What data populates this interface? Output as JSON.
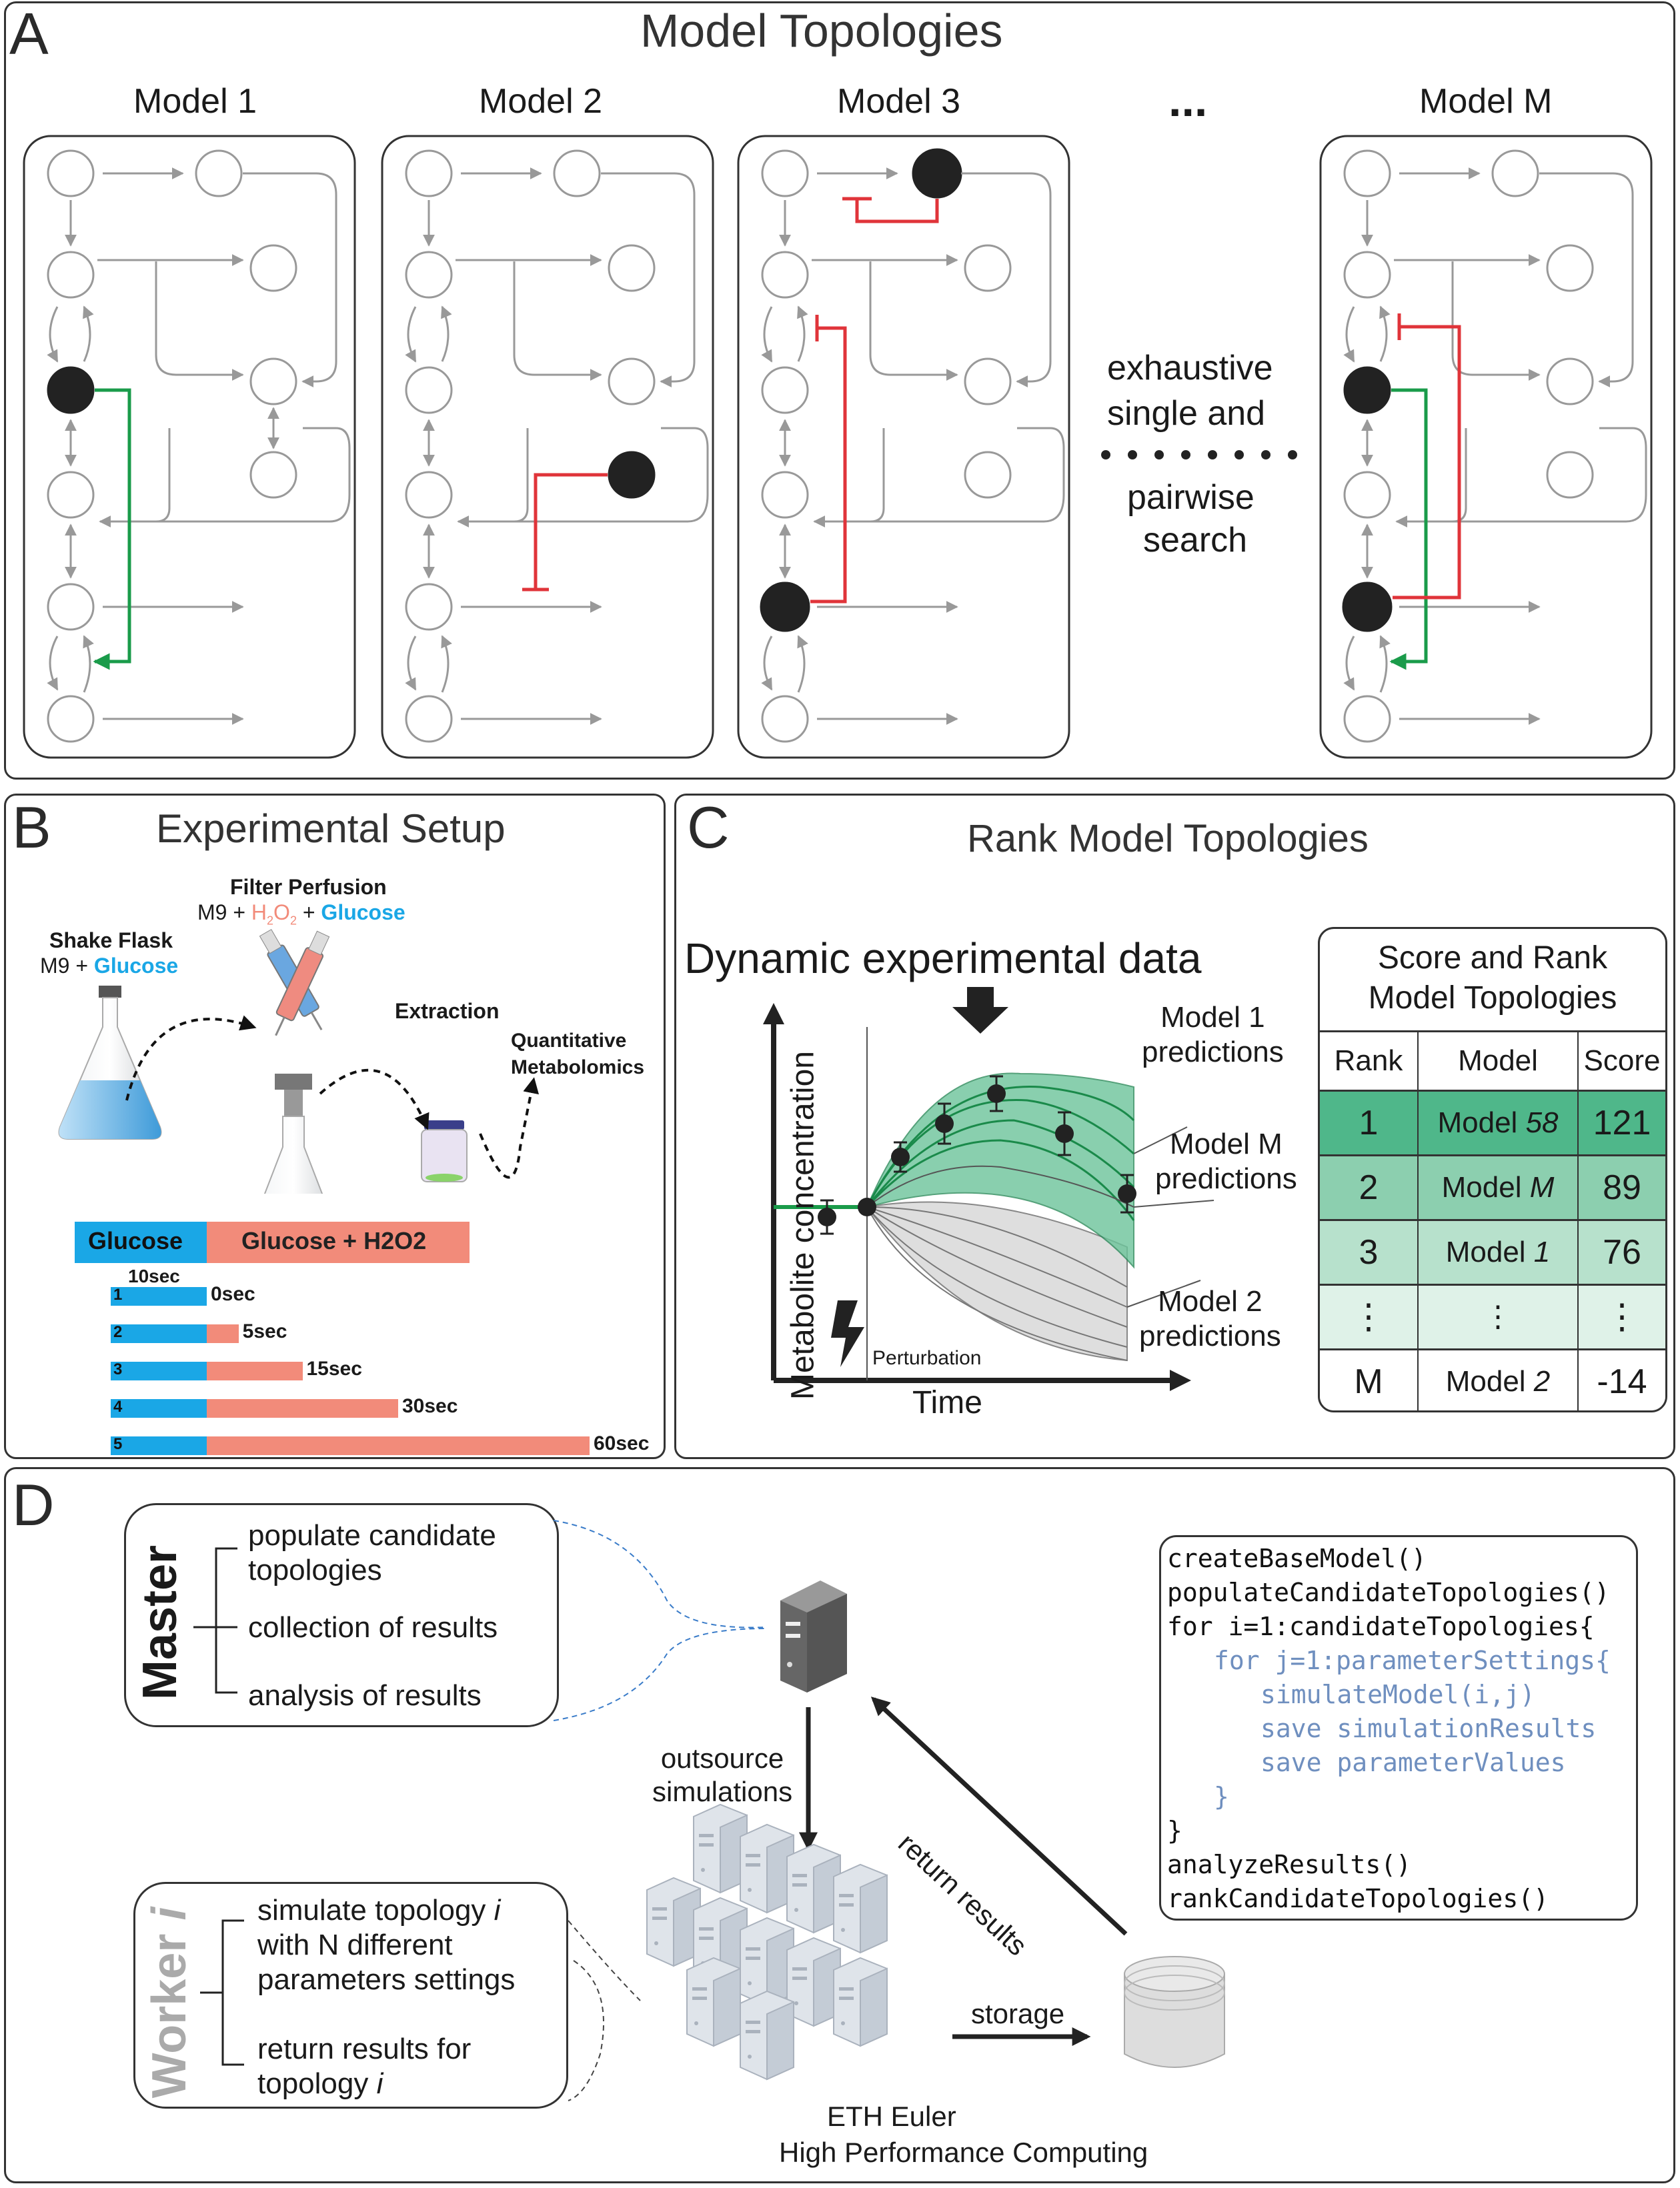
{
  "panel_a": {
    "label": "A",
    "title": "Model Topologies",
    "models": [
      "Model 1",
      "Model 2",
      "Model 3",
      "Model M"
    ],
    "ellipsis": "...",
    "search_lines": [
      "exhaustive",
      "single and",
      "pairwise",
      "search"
    ]
  },
  "panel_b": {
    "label": "B",
    "title": "Experimental Setup",
    "shake_flask": "Shake Flask",
    "shake_medium_prefix": "M9 + ",
    "glucose": "Glucose",
    "filter_perfusion": "Filter Perfusion",
    "filter_m9": "M9 + ",
    "h2o2_h": "H",
    "h2o2_2a": "2",
    "h2o2_o": "O",
    "h2o2_2b": "2",
    "plus": " + ",
    "extraction": "Extraction",
    "quant_line1": "Quantitative",
    "quant_line2": "Metabolomics",
    "bar_glucose": "Glucose",
    "bar_glucose_h2o2": "Glucose + H2O2",
    "ten_sec": "10sec",
    "rows": [
      {
        "n": "1",
        "label": "0sec",
        "frac": 0
      },
      {
        "n": "2",
        "label": "5sec",
        "frac": 0.083
      },
      {
        "n": "3",
        "label": "15sec",
        "frac": 0.25
      },
      {
        "n": "4",
        "label": "30sec",
        "frac": 0.5
      },
      {
        "n": "5",
        "label": "60sec",
        "frac": 1.0
      }
    ],
    "colors": {
      "glucose": "#1aa7e6",
      "h2o2": "#f28b7a"
    }
  },
  "panel_c": {
    "label": "C",
    "title": "Rank Model Topologies",
    "dynamic": "Dynamic experimental data",
    "ylabel": "Metabolite concentration",
    "xlabel": "Time",
    "perturbation": "Perturbation",
    "m1": [
      "Model 1",
      "predictions"
    ],
    "mm": [
      "Model M",
      "predictions"
    ],
    "m2": [
      "Model 2",
      "predictions"
    ],
    "table_title": [
      "Score and Rank",
      "Model Topologies"
    ],
    "headers": [
      "Rank",
      "Model",
      "Score"
    ],
    "rows": [
      {
        "rank": "1",
        "model": "Model ",
        "model_it": "58",
        "score": "121"
      },
      {
        "rank": "2",
        "model": "Model ",
        "model_it": "M",
        "score": "89"
      },
      {
        "rank": "3",
        "model": "Model ",
        "model_it": "1",
        "score": "76"
      },
      {
        "rank": "⋮",
        "model": "⋮",
        "model_it": "",
        "score": "⋮"
      },
      {
        "rank": "M",
        "model": "Model ",
        "model_it": "2",
        "score": "-14"
      }
    ]
  },
  "panel_d": {
    "label": "D",
    "master": "Master",
    "master_items": [
      "populate candidate",
      "topologies",
      "collection of results",
      "analysis of results"
    ],
    "outsource": [
      "outsource",
      "simulations"
    ],
    "return_results": "return results",
    "worker_prefix": "Worker ",
    "worker_i": "i",
    "worker_items": [
      "simulate topology ",
      "with N different",
      "parameters settings",
      "return results for",
      "topology "
    ],
    "storage": "storage",
    "eth": [
      "ETH Euler",
      "High Performance Computing"
    ],
    "code_lines": [
      {
        "text": "createBaseModel()",
        "indent": 0,
        "blue": false
      },
      {
        "text": "populateCandidateTopologies()",
        "indent": 0,
        "blue": false
      },
      {
        "text": "for i=1:candidateTopologies{",
        "indent": 0,
        "blue": false
      },
      {
        "text": "for j=1:parameterSettings{",
        "indent": 1,
        "blue": true
      },
      {
        "text": "simulateModel(i,j)",
        "indent": 2,
        "blue": true
      },
      {
        "text": "save simulationResults",
        "indent": 2,
        "blue": true
      },
      {
        "text": "save parameterValues",
        "indent": 2,
        "blue": true
      },
      {
        "text": "}",
        "indent": 1,
        "blue": true
      },
      {
        "text": "}",
        "indent": 0,
        "blue": false
      },
      {
        "text": "analyzeResults()",
        "indent": 0,
        "blue": false
      },
      {
        "text": "rankCandidateTopologies()",
        "indent": 0,
        "blue": false
      }
    ]
  }
}
